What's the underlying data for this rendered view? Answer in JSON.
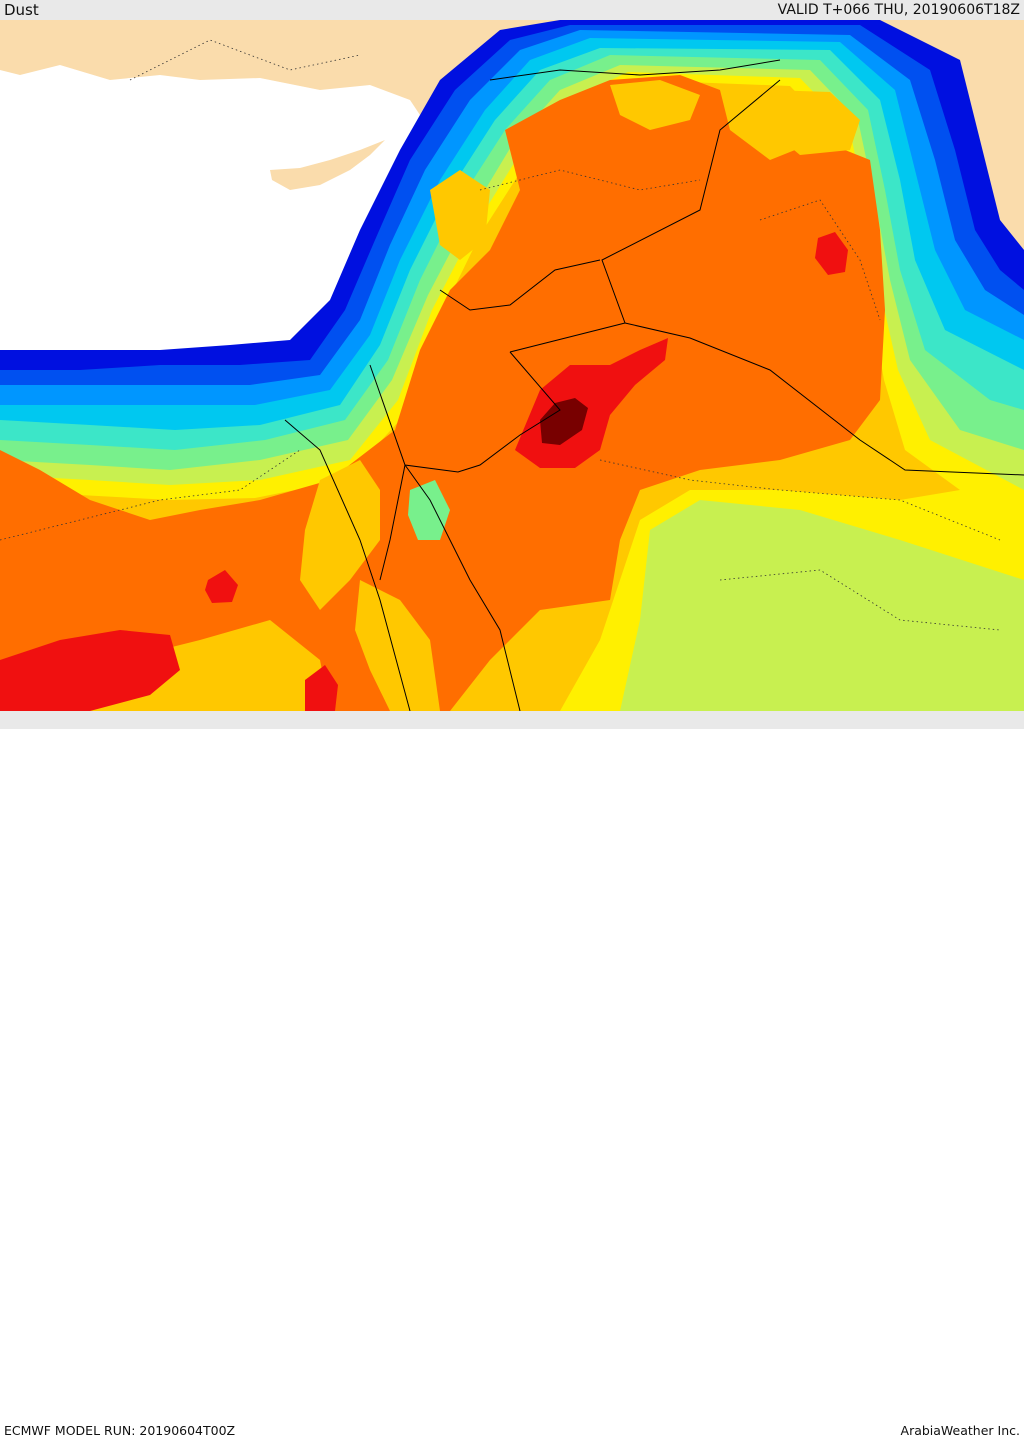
{
  "header": {
    "title": "Dust",
    "valid_time": "VALID T+066 THU, 20190606T18Z"
  },
  "footer": {
    "model_run": "ECMWF MODEL RUN: 20190604T00Z",
    "provider": "ArabiaWeather Inc."
  },
  "map": {
    "field": "dust",
    "colors": {
      "sea": "#ffffff",
      "land": "#fadcac",
      "deep_blue": "#0010e0",
      "blue": "#0050f0",
      "light_blue": "#0096ff",
      "cyan": "#00c8f0",
      "aqua": "#3ce6c8",
      "light_green": "#78f08c",
      "lime": "#c8f050",
      "yellow": "#fff000",
      "amber": "#ffc800",
      "orange": "#ff6e00",
      "red": "#f01010",
      "dark_red": "#780000",
      "border": "#000000"
    }
  }
}
